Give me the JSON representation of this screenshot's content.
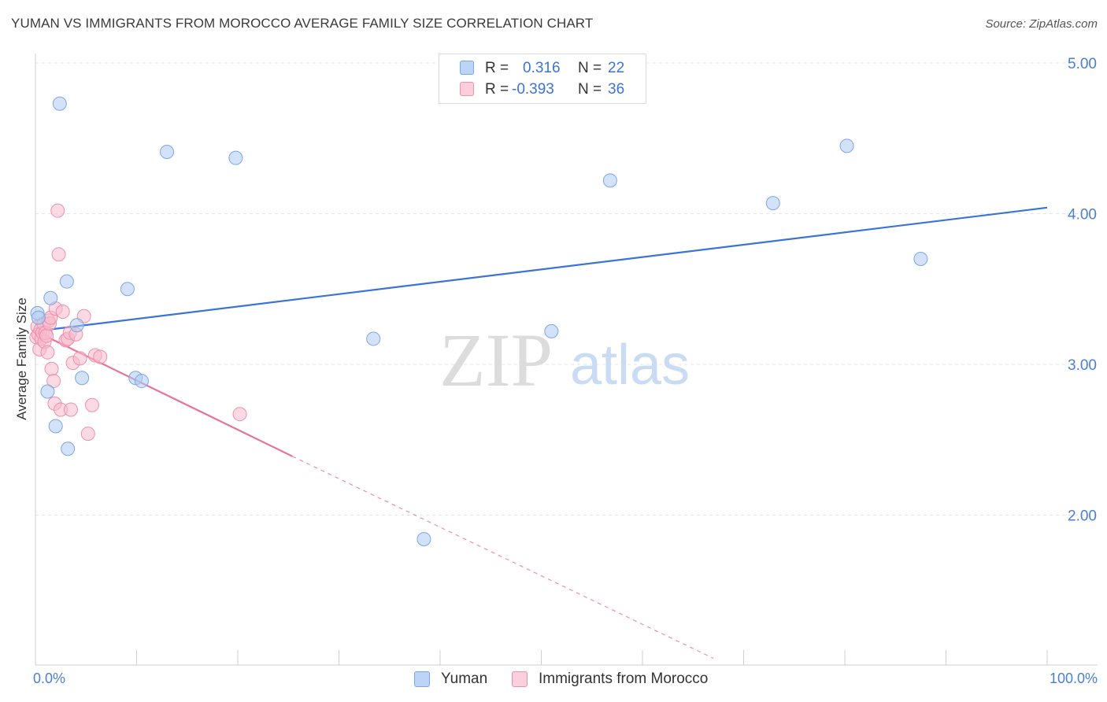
{
  "header": {
    "title": "YUMAN VS IMMIGRANTS FROM MOROCCO AVERAGE FAMILY SIZE CORRELATION CHART",
    "source": "Source: ZipAtlas.com"
  },
  "watermark": {
    "zip": "ZIP",
    "atlas": "atlas"
  },
  "legend": {
    "rows": [
      {
        "r_label": "R =",
        "r_value": "0.316",
        "n_label": "N =",
        "n_value": "22"
      },
      {
        "r_label": "R =",
        "r_value": "-0.393",
        "n_label": "N =",
        "n_value": "36"
      }
    ]
  },
  "bottom_legend": {
    "series1": "Yuman",
    "series2": "Immigrants from Morocco"
  },
  "axis": {
    "xmin_label": "0.0%",
    "xmax_label": "100.0%",
    "ylabel": "Average Family Size"
  },
  "colors": {
    "yuman_fill": "#aecbf3",
    "yuman_stroke": "#7ba7e6",
    "yuman_line": "#3a74d6",
    "morocco_fill": "#f8bccd",
    "morocco_stroke": "#ee8fab",
    "morocco_line": "#e8729a",
    "tick_text": "#4a7fd4",
    "grid": "#e4e4e4"
  },
  "chart_data": {
    "type": "scatter",
    "title": "YUMAN VS IMMIGRANTS FROM MOROCCO AVERAGE FAMILY SIZE CORRELATION CHART",
    "xlabel": "",
    "ylabel": "Average Family Size",
    "xlim": [
      0,
      100
    ],
    "ylim": [
      1.0,
      5.25
    ],
    "y_ticks": [
      2.0,
      3.0,
      4.0,
      5.0
    ],
    "y_tick_labels": [
      "2.00",
      "3.00",
      "4.00",
      "5.00"
    ],
    "grid": true,
    "legend_position": "top-center",
    "series": [
      {
        "name": "Yuman",
        "r": 0.316,
        "n": 22,
        "points": [
          [
            0.2,
            3.34
          ],
          [
            0.3,
            3.31
          ],
          [
            1.2,
            2.82
          ],
          [
            1.5,
            3.44
          ],
          [
            2.0,
            2.59
          ],
          [
            2.4,
            4.73
          ],
          [
            3.1,
            3.55
          ],
          [
            3.2,
            2.44
          ],
          [
            4.1,
            3.26
          ],
          [
            4.6,
            2.91
          ],
          [
            9.1,
            3.5
          ],
          [
            9.9,
            2.91
          ],
          [
            10.5,
            2.89
          ],
          [
            13.0,
            4.41
          ],
          [
            19.8,
            4.37
          ],
          [
            33.4,
            3.17
          ],
          [
            38.4,
            1.84
          ],
          [
            51.0,
            3.22
          ],
          [
            56.8,
            4.22
          ],
          [
            72.9,
            4.07
          ],
          [
            80.2,
            4.45
          ],
          [
            87.5,
            3.7
          ]
        ],
        "trend": {
          "x": [
            0,
            100
          ],
          "y": [
            3.22,
            4.04
          ]
        }
      },
      {
        "name": "Immigrants from Morocco",
        "r": -0.393,
        "n": 36,
        "points": [
          [
            0.1,
            3.18
          ],
          [
            0.2,
            3.25
          ],
          [
            0.3,
            3.2
          ],
          [
            0.4,
            3.1
          ],
          [
            0.5,
            3.23
          ],
          [
            0.6,
            3.17
          ],
          [
            0.7,
            3.21
          ],
          [
            0.8,
            3.27
          ],
          [
            0.9,
            3.15
          ],
          [
            1.0,
            3.21
          ],
          [
            1.1,
            3.19
          ],
          [
            1.2,
            3.08
          ],
          [
            1.3,
            3.29
          ],
          [
            1.4,
            3.27
          ],
          [
            1.5,
            3.31
          ],
          [
            1.6,
            2.97
          ],
          [
            1.8,
            2.89
          ],
          [
            1.9,
            2.74
          ],
          [
            2.0,
            3.37
          ],
          [
            2.2,
            4.02
          ],
          [
            2.3,
            3.73
          ],
          [
            2.5,
            2.7
          ],
          [
            2.7,
            3.35
          ],
          [
            3.0,
            3.16
          ],
          [
            3.2,
            3.17
          ],
          [
            3.4,
            3.21
          ],
          [
            3.5,
            2.7
          ],
          [
            3.7,
            3.01
          ],
          [
            4.0,
            3.2
          ],
          [
            4.4,
            3.04
          ],
          [
            4.8,
            3.32
          ],
          [
            5.2,
            2.54
          ],
          [
            5.6,
            2.73
          ],
          [
            5.9,
            3.06
          ],
          [
            6.4,
            3.05
          ],
          [
            20.2,
            2.67
          ]
        ],
        "trend": {
          "x": [
            0,
            25.4
          ],
          "y": [
            3.22,
            2.39
          ]
        },
        "trend_dashed": {
          "x": [
            25.4,
            67.0
          ],
          "y": [
            2.39,
            1.05
          ]
        }
      }
    ]
  }
}
